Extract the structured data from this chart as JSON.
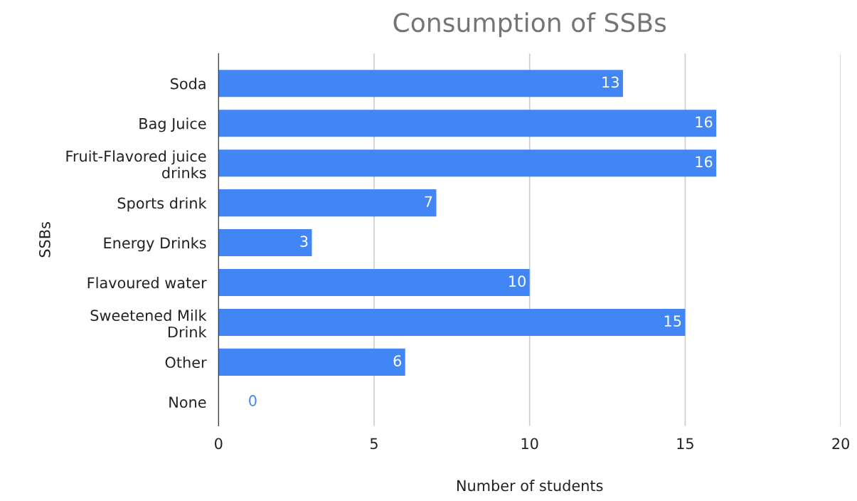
{
  "chart_data": {
    "type": "bar",
    "orientation": "horizontal",
    "title": "Consumption of SSBs",
    "xlabel": "Number of students",
    "ylabel": "SSBs",
    "categories": [
      "Soda",
      "Bag Juice",
      "Fruit-Flavored juice\ndrinks",
      "Sports drink",
      "Energy Drinks",
      "Flavoured water",
      "Sweetened Milk\nDrink",
      "Other",
      "None"
    ],
    "values": [
      13,
      16,
      16,
      7,
      3,
      10,
      15,
      6,
      0
    ],
    "color": "#4285f4",
    "xlim": [
      0,
      20
    ],
    "xticks": [
      0,
      5,
      10,
      15,
      20
    ],
    "grid": "x",
    "data_labels": true
  }
}
